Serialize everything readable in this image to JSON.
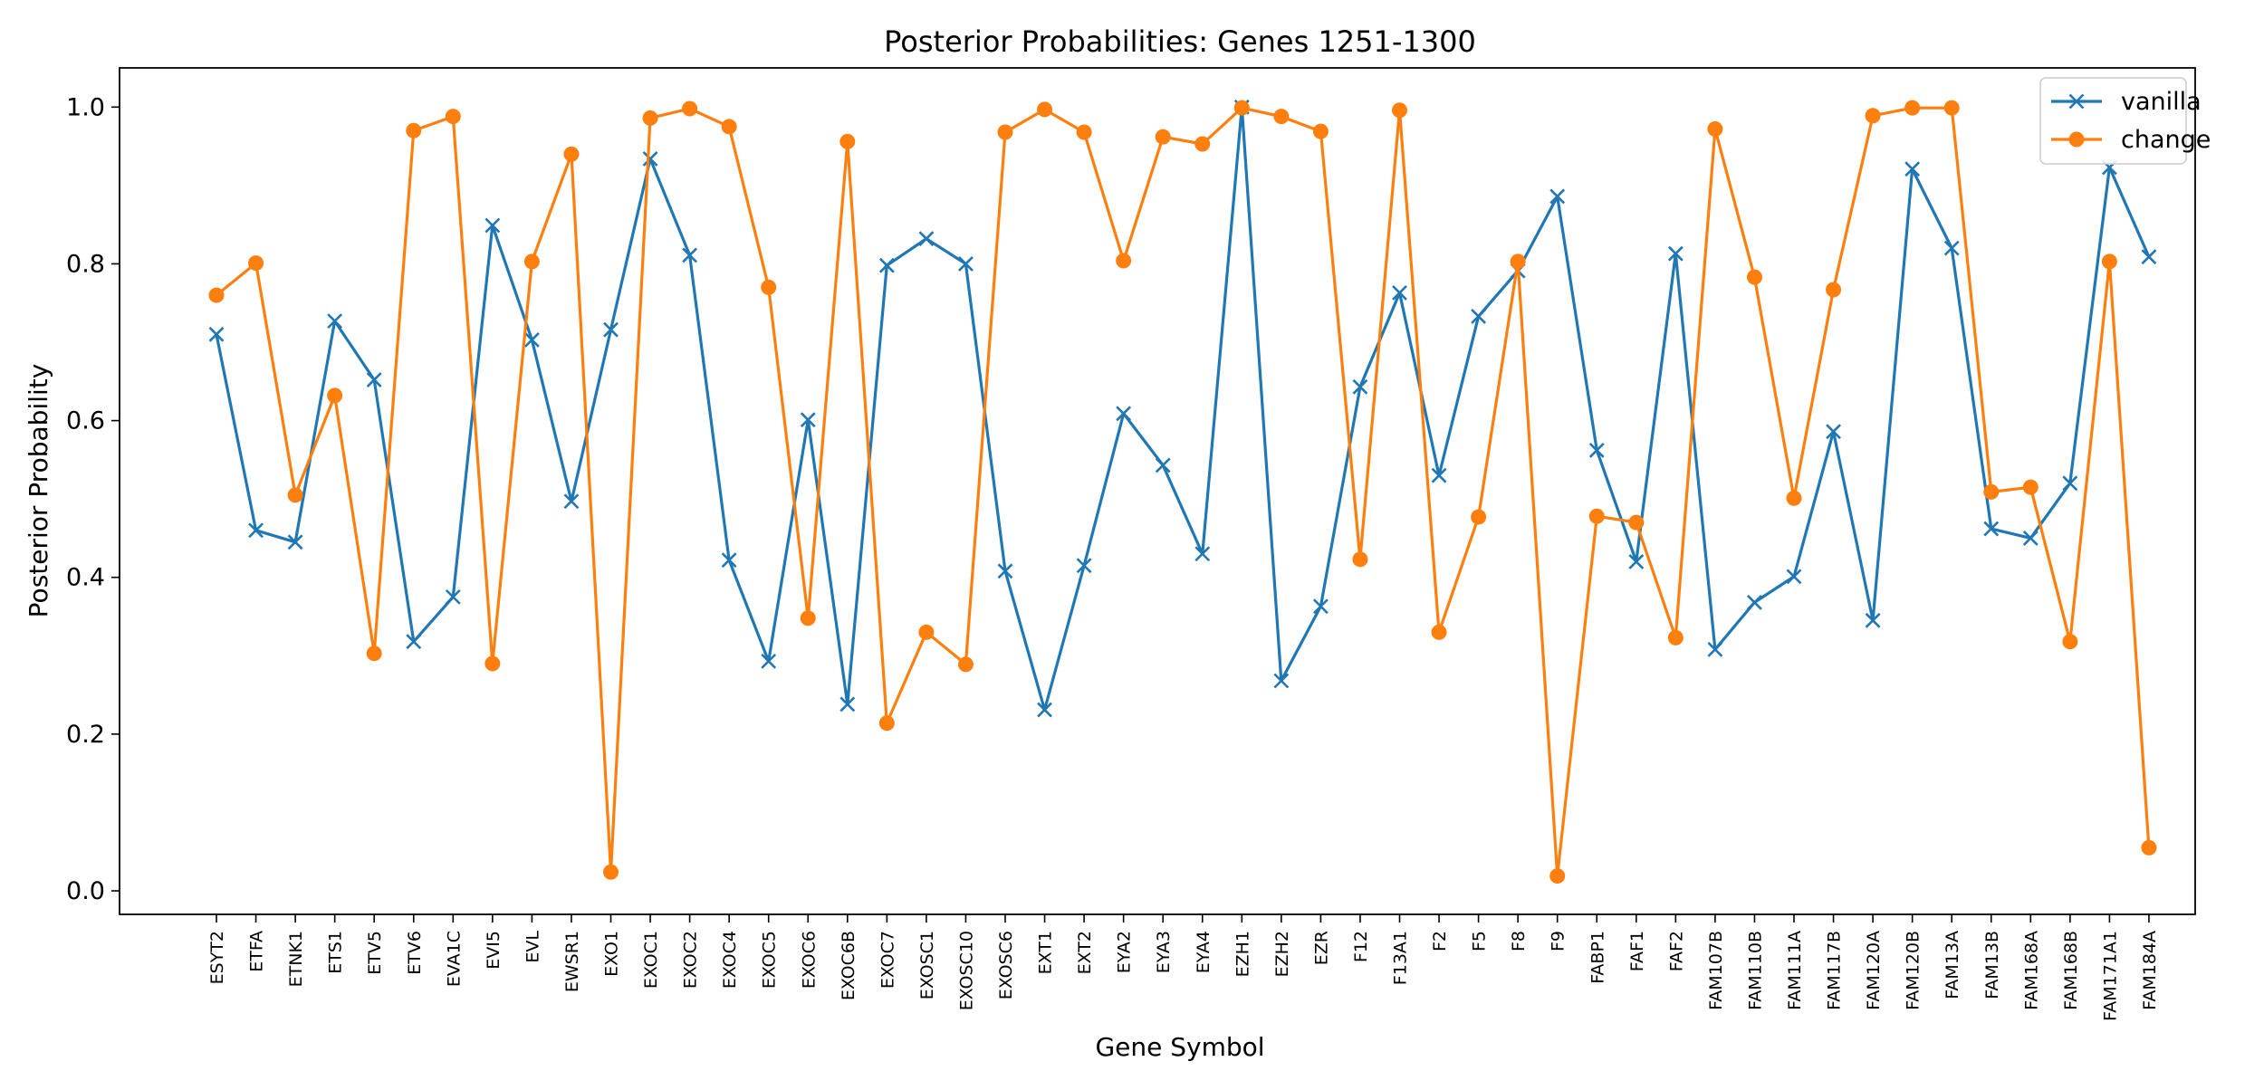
{
  "chart_data": {
    "type": "line",
    "title": "Posterior Probabilities: Genes 1251-1300",
    "xlabel": "Gene Symbol",
    "ylabel": "Posterior Probability",
    "ylim": [
      -0.03,
      1.05
    ],
    "yticks": [
      "0.0",
      "0.2",
      "0.4",
      "0.6",
      "0.8",
      "1.0"
    ],
    "grid": false,
    "legend_position": "top-right",
    "categories": [
      "ESYT2",
      "ETFA",
      "ETNK1",
      "ETS1",
      "ETV5",
      "ETV6",
      "EVA1C",
      "EVI5",
      "EVL",
      "EWSR1",
      "EXO1",
      "EXOC1",
      "EXOC2",
      "EXOC4",
      "EXOC5",
      "EXOC6",
      "EXOC6B",
      "EXOC7",
      "EXOSC1",
      "EXOSC10",
      "EXOSC6",
      "EXT1",
      "EXT2",
      "EYA2",
      "EYA3",
      "EYA4",
      "EZH1",
      "EZH2",
      "EZR",
      "F12",
      "F13A1",
      "F2",
      "F5",
      "F8",
      "F9",
      "FABP1",
      "FAF1",
      "FAF2",
      "FAM107B",
      "FAM110B",
      "FAM111A",
      "FAM117B",
      "FAM120A",
      "FAM120B",
      "FAM13A",
      "FAM13B",
      "FAM168A",
      "FAM168B",
      "FAM171A1",
      "FAM184A"
    ],
    "series": [
      {
        "name": "vanilla",
        "color": "#1f77b4",
        "marker": "x",
        "values": [
          0.71,
          0.46,
          0.445,
          0.727,
          0.652,
          0.318,
          0.375,
          0.849,
          0.703,
          0.497,
          0.716,
          0.934,
          0.811,
          0.422,
          0.293,
          0.601,
          0.238,
          0.798,
          0.832,
          0.8,
          0.408,
          0.231,
          0.415,
          0.609,
          0.543,
          0.43,
          1.0,
          0.268,
          0.363,
          0.643,
          0.763,
          0.53,
          0.733,
          0.791,
          0.886,
          0.562,
          0.42,
          0.813,
          0.308,
          0.368,
          0.401,
          0.586,
          0.345,
          0.921,
          0.82,
          0.462,
          0.45,
          0.52,
          0.923,
          0.809
        ]
      },
      {
        "name": "change",
        "color": "#ff7f0e",
        "marker": "o",
        "values": [
          0.76,
          0.801,
          0.505,
          0.632,
          0.303,
          0.97,
          0.988,
          0.29,
          0.803,
          0.94,
          0.024,
          0.986,
          0.998,
          0.975,
          0.77,
          0.348,
          0.956,
          0.214,
          0.33,
          0.289,
          0.968,
          0.997,
          0.968,
          0.804,
          0.962,
          0.953,
          0.999,
          0.988,
          0.969,
          0.423,
          0.996,
          0.33,
          0.477,
          0.803,
          0.019,
          0.478,
          0.47,
          0.323,
          0.972,
          0.783,
          0.501,
          0.767,
          0.989,
          0.999,
          0.999,
          0.509,
          0.515,
          0.318,
          0.803,
          0.055
        ]
      }
    ]
  }
}
